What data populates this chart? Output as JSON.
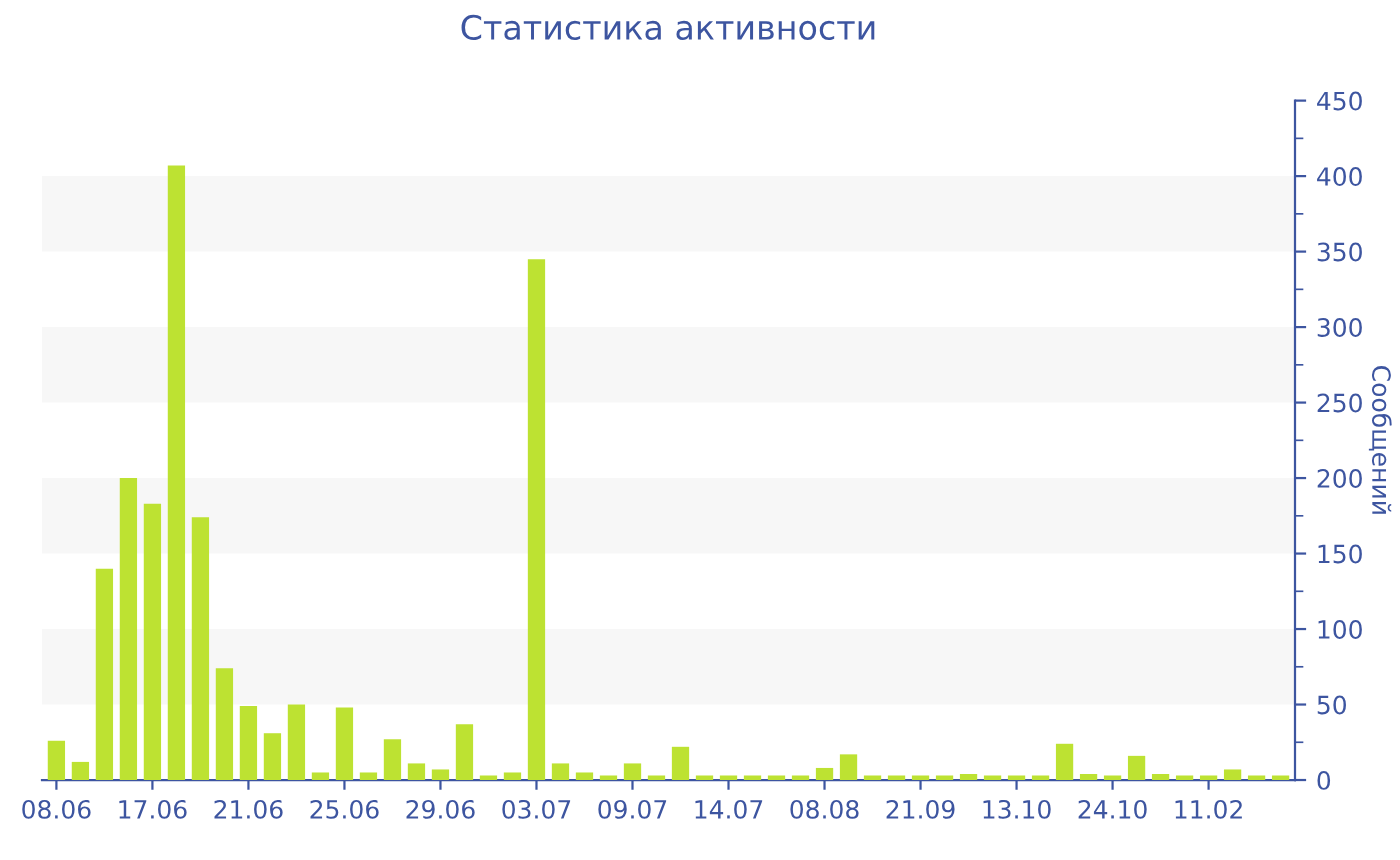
{
  "chart_data": {
    "type": "bar",
    "title": "Статистика активности",
    "ylabel": "Сообщений",
    "categories": [
      "08.06",
      null,
      null,
      null,
      "17.06",
      null,
      null,
      null,
      "21.06",
      null,
      null,
      null,
      "25.06",
      null,
      null,
      null,
      "29.06",
      null,
      null,
      null,
      "03.07",
      null,
      null,
      null,
      "09.07",
      null,
      null,
      null,
      "14.07",
      null,
      null,
      null,
      "08.08",
      null,
      null,
      null,
      "21.09",
      null,
      null,
      null,
      "13.10",
      null,
      null,
      null,
      "24.10",
      null,
      null,
      null,
      "11.02",
      null,
      null,
      null
    ],
    "values": [
      26,
      12,
      140,
      200,
      183,
      407,
      174,
      74,
      49,
      31,
      50,
      5,
      48,
      5,
      27,
      11,
      7,
      37,
      3,
      5,
      345,
      11,
      5,
      3,
      11,
      3,
      22,
      3,
      3,
      3,
      3,
      3,
      8,
      17,
      3,
      3,
      3,
      3,
      4,
      3,
      3,
      3,
      24,
      4,
      3,
      16,
      4,
      3,
      3,
      7,
      3,
      3
    ],
    "color": "#bde232",
    "ylim": [
      0,
      450
    ],
    "yticks": [
      0,
      50,
      100,
      150,
      200,
      250,
      300,
      350,
      400,
      450
    ],
    "bands": [
      {
        "axis": "y",
        "from": 50,
        "to": 100,
        "color": "#f7f7f7"
      },
      {
        "axis": "y",
        "from": 150,
        "to": 200,
        "color": "#f7f7f7"
      },
      {
        "axis": "y",
        "from": 250,
        "to": 300,
        "color": "#f7f7f7"
      },
      {
        "axis": "y",
        "from": 350,
        "to": 400,
        "color": "#f7f7f7"
      }
    ]
  }
}
